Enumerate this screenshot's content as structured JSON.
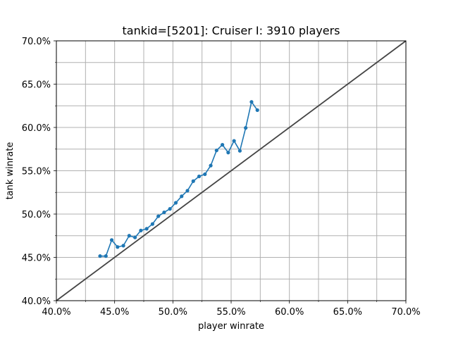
{
  "chart_data": {
    "type": "line",
    "title": "tankid=[5201]: Cruiser I: 3910 players",
    "xlabel": "player winrate",
    "ylabel": "tank winrate",
    "xlim": [
      0.4,
      0.7
    ],
    "ylim": [
      0.4,
      0.7
    ],
    "x_ticks": [
      0.4,
      0.45,
      0.5,
      0.55,
      0.6,
      0.65,
      0.7
    ],
    "x_tick_labels": [
      "40.0%",
      "45.0%",
      "50.0%",
      "55.0%",
      "60.0%",
      "65.0%",
      "70.0%"
    ],
    "y_ticks": [
      0.4,
      0.45,
      0.5,
      0.55,
      0.6,
      0.65,
      0.7
    ],
    "y_tick_labels": [
      "40.0%",
      "45.0%",
      "50.0%",
      "55.0%",
      "60.0%",
      "65.0%",
      "70.0%"
    ],
    "grid": true,
    "minor_grid": true,
    "series": [
      {
        "color": "#1f77b4",
        "marker": "circle",
        "x": [
          0.4375,
          0.4425,
          0.4475,
          0.4525,
          0.4575,
          0.4625,
          0.4675,
          0.4725,
          0.4775,
          0.4825,
          0.4875,
          0.4925,
          0.4975,
          0.5025,
          0.5075,
          0.5125,
          0.5175,
          0.5225,
          0.5275,
          0.5325,
          0.5375,
          0.5425,
          0.5475,
          0.5525,
          0.5575,
          0.5625,
          0.5675,
          0.5725
        ],
        "y": [
          0.4515,
          0.4515,
          0.47,
          0.462,
          0.4635,
          0.475,
          0.473,
          0.481,
          0.483,
          0.4885,
          0.4975,
          0.502,
          0.506,
          0.513,
          0.5205,
          0.527,
          0.538,
          0.5435,
          0.546,
          0.556,
          0.5735,
          0.58,
          0.571,
          0.5845,
          0.573,
          0.5995,
          0.6295,
          0.62
        ]
      }
    ],
    "reference_line": {
      "x": [
        0.4,
        0.7
      ],
      "y": [
        0.4,
        0.7
      ],
      "color": "#444444"
    }
  }
}
